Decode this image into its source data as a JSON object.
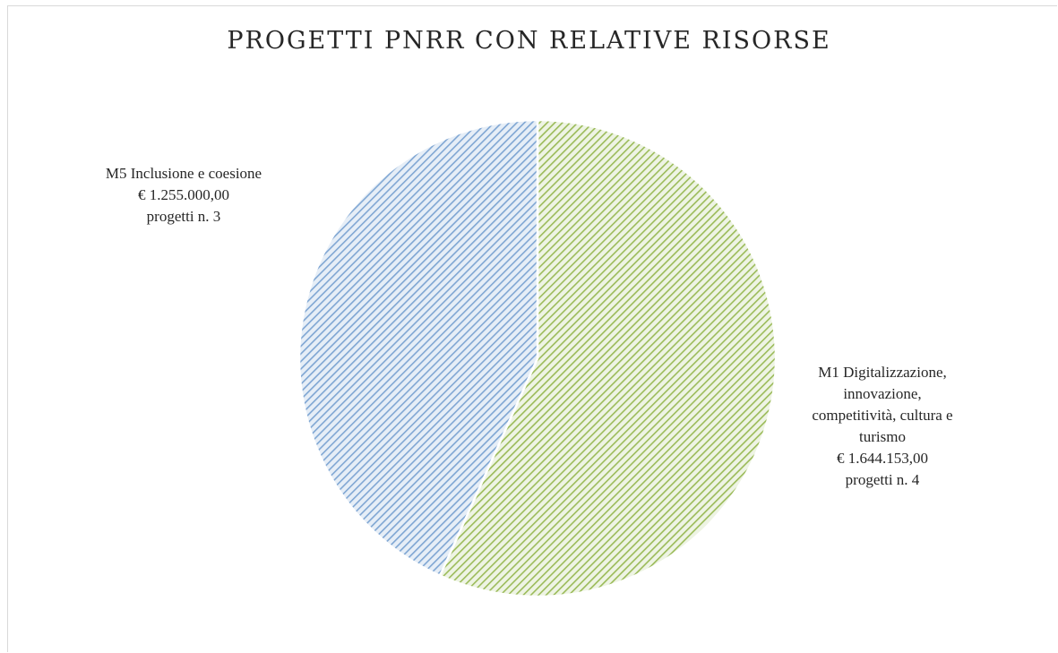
{
  "chart_data": {
    "type": "pie",
    "title": "PROGETTI PNRR CON RELATIVE RISORSE",
    "slices": [
      {
        "category": "M1 Digitalizzazione, innovazione, competitività, cultura e turismo",
        "value": 1644153.0,
        "value_label": "€ 1.644.153,00",
        "projects_label": "progetti n. 4",
        "color": "#9bbb59"
      },
      {
        "category": "M5 Inclusione e coesione",
        "value": 1255000.0,
        "value_label": "€ 1.255.000,00",
        "projects_label": "progetti n. 3",
        "color": "#4f81bd"
      }
    ],
    "labels": {
      "m1_lines": [
        "M1 Digitalizzazione,",
        "innovazione,",
        "competitività, cultura e",
        "turismo"
      ],
      "m5_lines": [
        "M5 Inclusione e coesione"
      ]
    },
    "start_angle": "12 o'clock",
    "direction": "clockwise",
    "legend": "none",
    "fill_style": "diagonal hatch"
  }
}
